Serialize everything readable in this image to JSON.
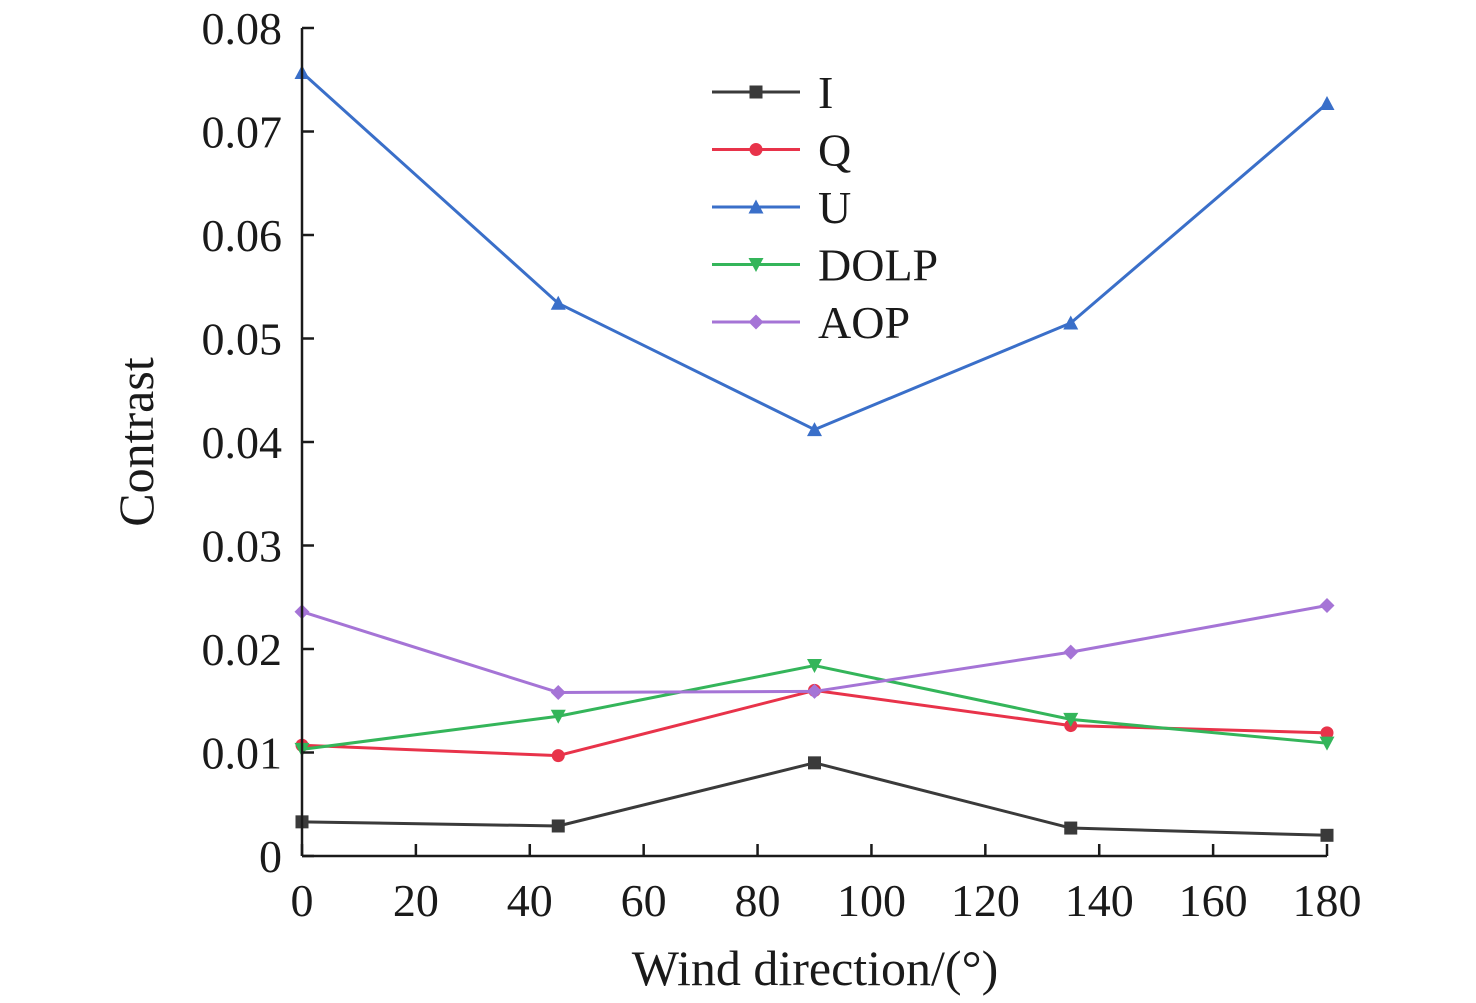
{
  "chart_data": {
    "type": "line",
    "title": "",
    "xlabel": "Wind direction/(°)",
    "ylabel": "Contrast",
    "xlim": [
      0,
      180
    ],
    "ylim": [
      0,
      0.08
    ],
    "xticks": [
      0,
      20,
      40,
      60,
      80,
      100,
      120,
      140,
      160,
      180
    ],
    "yticks": [
      0,
      0.01,
      0.02,
      0.03,
      0.04,
      0.05,
      0.06,
      0.07,
      0.08
    ],
    "xtick_labels": [
      "0",
      "20",
      "40",
      "60",
      "80",
      "100",
      "120",
      "140",
      "160",
      "180"
    ],
    "ytick_labels": [
      "0",
      "0.01",
      "0.02",
      "0.03",
      "0.04",
      "0.05",
      "0.06",
      "0.07",
      "0.08"
    ],
    "grid": false,
    "legend_position": "top-center",
    "x": [
      0,
      45,
      90,
      135,
      180
    ],
    "series": [
      {
        "name": "I",
        "color": "#3a3a3a",
        "marker": "square",
        "values": [
          0.0033,
          0.0029,
          0.009,
          0.0027,
          0.002
        ]
      },
      {
        "name": "Q",
        "color": "#e8334a",
        "marker": "circle",
        "values": [
          0.0107,
          0.0097,
          0.016,
          0.0126,
          0.0119
        ]
      },
      {
        "name": "U",
        "color": "#3a6fc9",
        "marker": "triangle-up",
        "values": [
          0.0757,
          0.0534,
          0.0412,
          0.0515,
          0.0727
        ]
      },
      {
        "name": "DOLP",
        "color": "#34b55a",
        "marker": "triangle-down",
        "values": [
          0.0103,
          0.0135,
          0.0184,
          0.0132,
          0.0109
        ]
      },
      {
        "name": "AOP",
        "color": "#a574d6",
        "marker": "diamond",
        "values": [
          0.0236,
          0.0158,
          0.0159,
          0.0197,
          0.0242
        ]
      }
    ]
  }
}
